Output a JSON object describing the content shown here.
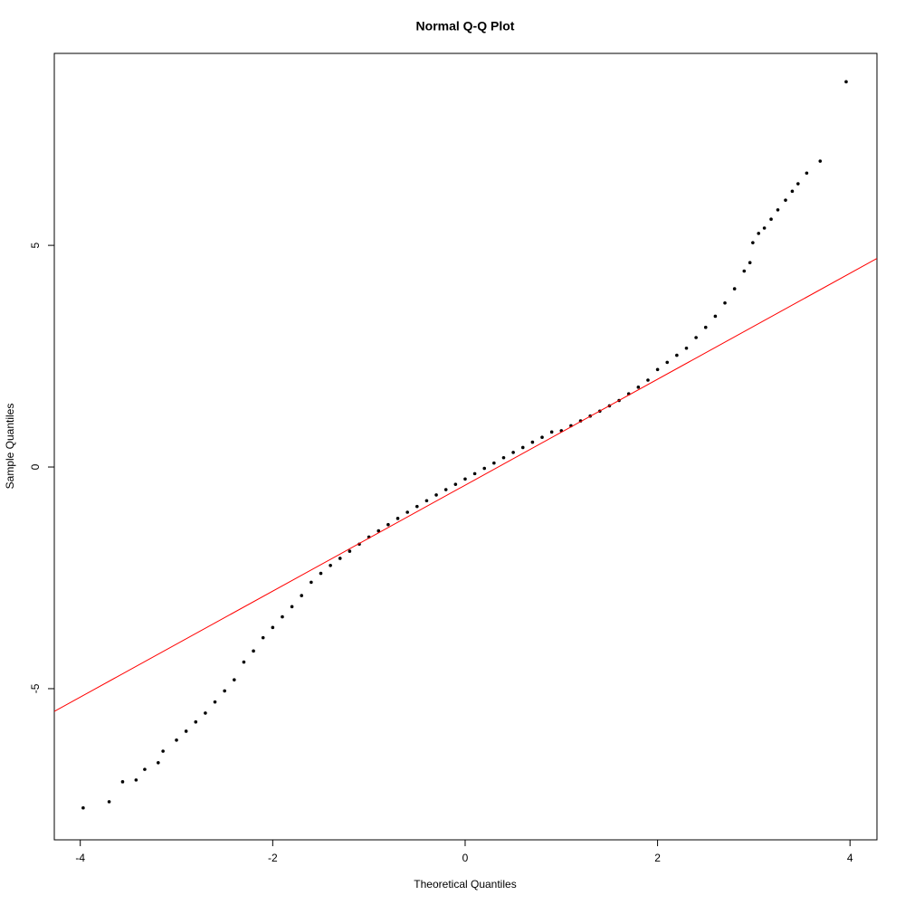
{
  "chart_data": {
    "type": "scatter",
    "title": "Normal Q-Q Plot",
    "x_label": "Theoretical Quantiles",
    "y_label": "Sample Quantiles",
    "xlim": [
      -4.27,
      4.28
    ],
    "ylim": [
      -8.41,
      9.33
    ],
    "xticks": [
      -4,
      -2,
      0,
      2,
      4
    ],
    "yticks": [
      -5,
      0,
      5
    ],
    "grid": false,
    "color": "#000000",
    "x": [
      -3.97,
      -3.7,
      -3.56,
      -3.42,
      -3.33,
      -3.19,
      -3.14,
      -3.0,
      -2.9,
      -2.8,
      -2.7,
      -2.6,
      -2.5,
      -2.4,
      -2.3,
      -2.2,
      -2.1,
      -2.0,
      -1.9,
      -1.8,
      -1.7,
      -1.6,
      -1.5,
      -1.4,
      -1.3,
      -1.2,
      -1.1,
      -1.0,
      -0.9,
      -0.8,
      -0.7,
      -0.6,
      -0.5,
      -0.4,
      -0.3,
      -0.2,
      -0.1,
      0,
      0.1,
      0.2,
      0.3,
      0.4,
      0.5,
      0.6,
      0.7,
      0.8,
      0.9,
      1.0,
      1.1,
      1.2,
      1.3,
      1.4,
      1.5,
      1.6,
      1.7,
      1.8,
      1.9,
      2.0,
      2.1,
      2.2,
      2.3,
      2.4,
      2.5,
      2.6,
      2.7,
      2.8,
      2.9,
      2.96,
      2.99,
      3.05,
      3.11,
      3.18,
      3.25,
      3.33,
      3.4,
      3.46,
      3.55,
      3.69,
      3.96
    ],
    "y": [
      -7.69,
      -7.55,
      -7.1,
      -7.06,
      -6.82,
      -6.67,
      -6.41,
      -6.16,
      -5.96,
      -5.75,
      -5.55,
      -5.3,
      -5.05,
      -4.8,
      -4.4,
      -4.15,
      -3.85,
      -3.62,
      -3.38,
      -3.15,
      -2.9,
      -2.6,
      -2.4,
      -2.22,
      -2.06,
      -1.9,
      -1.74,
      -1.58,
      -1.44,
      -1.3,
      -1.16,
      -1.02,
      -0.89,
      -0.76,
      -0.63,
      -0.51,
      -0.39,
      -0.27,
      -0.15,
      -0.03,
      0.09,
      0.21,
      0.33,
      0.44,
      0.56,
      0.67,
      0.79,
      0.82,
      0.93,
      1.04,
      1.15,
      1.26,
      1.38,
      1.5,
      1.65,
      1.8,
      1.96,
      2.2,
      2.36,
      2.52,
      2.68,
      2.92,
      3.15,
      3.4,
      3.7,
      4.02,
      4.42,
      4.61,
      5.06,
      5.27,
      5.39,
      5.59,
      5.8,
      6.02,
      6.22,
      6.39,
      6.63,
      6.9,
      8.69
    ],
    "reference_line": {
      "intercept": -0.41,
      "slope": 1.195,
      "color": "#ff0000"
    }
  }
}
